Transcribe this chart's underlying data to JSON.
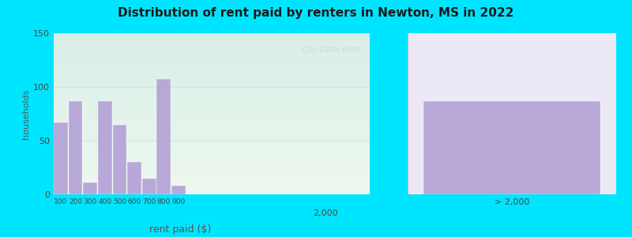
{
  "title": "Distribution of rent paid by renters in Newton, MS in 2022",
  "xlabel": "rent paid ($)",
  "ylabel": "households",
  "bar_color": "#b8a8d8",
  "background_outer": "#00e5ff",
  "background_inner_left_top": "#e8f5e0",
  "background_inner_left_bottom": "#d0ede8",
  "background_inner_right": "#ede8f5",
  "ylim": [
    0,
    150
  ],
  "yticks": [
    0,
    50,
    100,
    150
  ],
  "bar_positions": [
    100,
    200,
    300,
    400,
    500,
    600,
    700,
    800,
    900
  ],
  "bar_values": [
    67,
    87,
    11,
    87,
    65,
    30,
    15,
    107,
    8
  ],
  "special_bar_label": "> 2,000",
  "special_bar_value": 87,
  "mid_label": "2,000",
  "watermark": "City-Data.com",
  "grid_color": "#e0d8f0",
  "grid_linewidth": 0.8
}
